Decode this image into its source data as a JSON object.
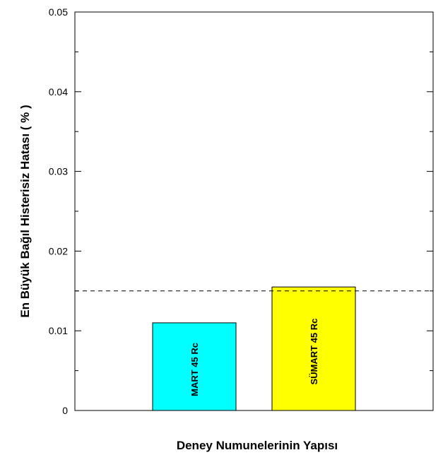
{
  "chart_data": {
    "type": "bar",
    "xlabel": "Deney Numunelerinin Yapısı",
    "ylabel": "En Büyük Bağıl Histerisiz Hatası ( % )",
    "ylim": [
      0,
      0.05
    ],
    "yticks": [
      "0",
      "0.01",
      "0.02",
      "0.03",
      "0.04",
      "0.05"
    ],
    "categories": [
      "MART 45 Rc",
      "SÜMART 45 Rc"
    ],
    "values": [
      0.011,
      0.0155
    ],
    "bar_colors": [
      "#00ffff",
      "#ffff00"
    ],
    "reference_line": 0.015,
    "grid": false,
    "legend": "none"
  }
}
